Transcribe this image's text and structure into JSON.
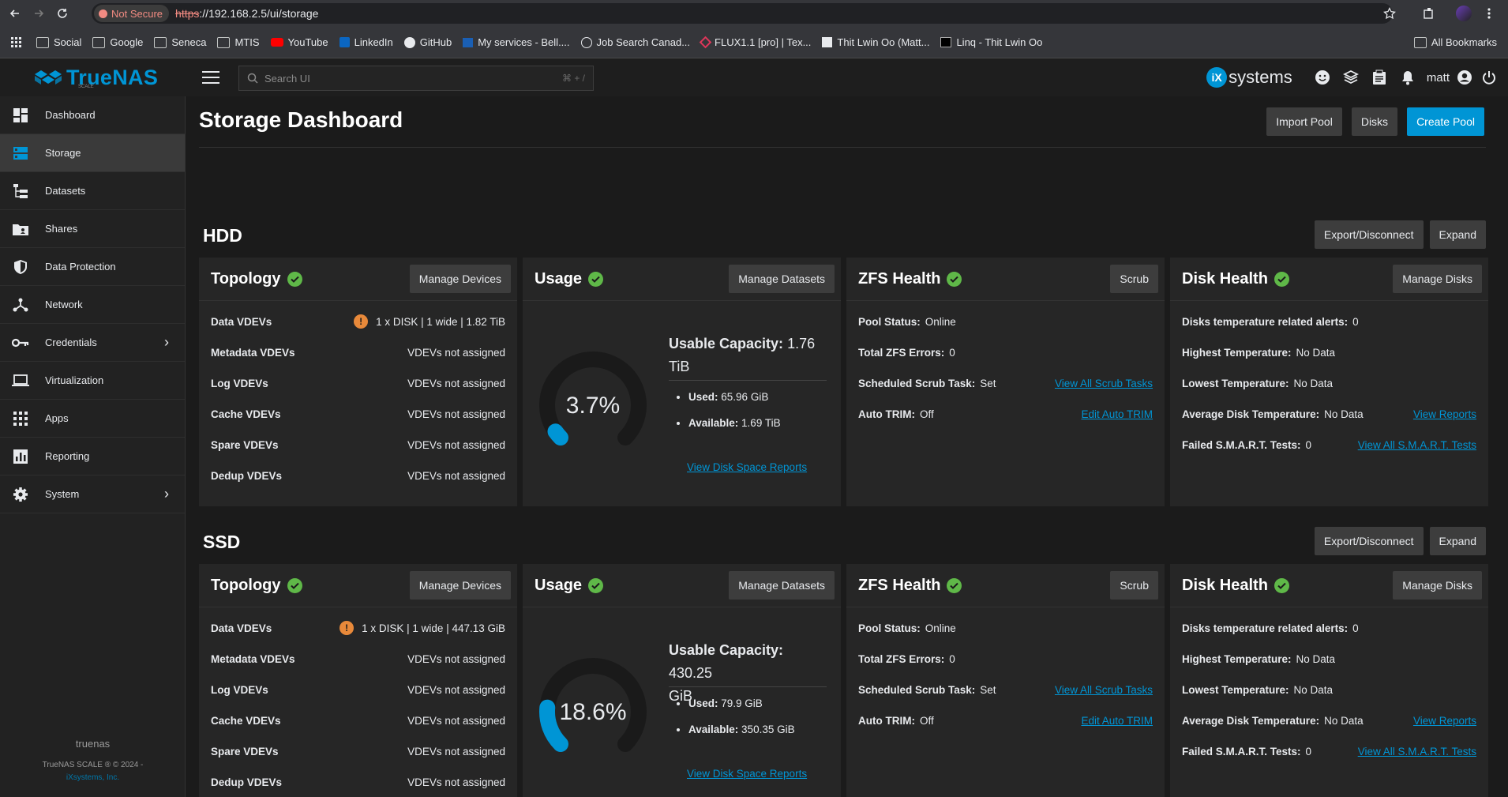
{
  "browser": {
    "security_label": "Not Secure",
    "url_scheme": "https",
    "url_rest": "://192.168.2.5/ui/storage",
    "bookmarks": [
      "Social",
      "Google",
      "Seneca",
      "MTIS",
      "YouTube",
      "LinkedIn",
      "GitHub",
      "My services - Bell....",
      "Job Search Canad...",
      "FLUX1.1 [pro] | Tex...",
      "Thit Lwin Oo (Matt...",
      "Linq - Thit Lwin Oo"
    ],
    "all_bookmarks": "All Bookmarks"
  },
  "header": {
    "logo": "TrueNAS",
    "logo_sub": "SCALE",
    "search_placeholder": "Search UI",
    "search_shortcut": "⌘ + /",
    "ix_brand": "systems",
    "user": "matt"
  },
  "sidebar": {
    "items": [
      {
        "label": "Dashboard",
        "icon": "dashboard-icon"
      },
      {
        "label": "Storage",
        "icon": "storage-icon"
      },
      {
        "label": "Datasets",
        "icon": "datasets-icon"
      },
      {
        "label": "Shares",
        "icon": "shares-icon"
      },
      {
        "label": "Data Protection",
        "icon": "shield-icon"
      },
      {
        "label": "Network",
        "icon": "network-icon"
      },
      {
        "label": "Credentials",
        "icon": "key-icon"
      },
      {
        "label": "Virtualization",
        "icon": "laptop-icon"
      },
      {
        "label": "Apps",
        "icon": "apps-grid-icon"
      },
      {
        "label": "Reporting",
        "icon": "chart-icon"
      },
      {
        "label": "System",
        "icon": "gear-icon"
      }
    ],
    "hostname": "truenas",
    "copyright": "TrueNAS SCALE ® © 2024 -",
    "company": "iXsystems, Inc."
  },
  "page": {
    "title": "Storage Dashboard",
    "import_pool": "Import Pool",
    "disks": "Disks",
    "create_pool": "Create Pool"
  },
  "labels": {
    "export": "Export/Disconnect",
    "expand": "Expand",
    "topology": "Topology",
    "manage_devices": "Manage Devices",
    "usage": "Usage",
    "manage_datasets": "Manage Datasets",
    "zfs_health": "ZFS Health",
    "scrub": "Scrub",
    "disk_health": "Disk Health",
    "manage_disks": "Manage Disks",
    "data_vdevs": "Data VDEVs",
    "metadata_vdevs": "Metadata VDEVs",
    "log_vdevs": "Log VDEVs",
    "cache_vdevs": "Cache VDEVs",
    "spare_vdevs": "Spare VDEVs",
    "dedup_vdevs": "Dedup VDEVs",
    "not_assigned": "VDEVs not assigned",
    "usable_capacity": "Usable Capacity:",
    "used": "Used:",
    "available": "Available:",
    "view_disk_space_reports": "View Disk Space Reports",
    "pool_status": "Pool Status:",
    "total_zfs_errors": "Total ZFS Errors:",
    "scheduled_scrub": "Scheduled Scrub Task:",
    "view_all_scrub": "View All Scrub Tasks",
    "auto_trim": "Auto TRIM:",
    "edit_auto_trim": "Edit Auto TRIM",
    "temp_alerts": "Disks temperature related alerts:",
    "highest_temp": "Highest Temperature:",
    "lowest_temp": "Lowest Temperature:",
    "avg_temp": "Average Disk Temperature:",
    "view_reports": "View Reports",
    "failed_smart": "Failed S.M.A.R.T. Tests:",
    "view_all_smart": "View All S.M.A.R.T. Tests"
  },
  "pools": [
    {
      "name": "HDD",
      "data_vdevs": "1 x DISK | 1 wide | 1.82 TiB",
      "usage_pct_label": "3.7%",
      "usage_fraction": 0.037,
      "usable_capacity_line1": "1.76",
      "usable_capacity_line2": "TiB",
      "used": "65.96 GiB",
      "available": "1.69 TiB",
      "pool_status": "Online",
      "total_zfs_errors": "0",
      "scheduled_scrub": "Set",
      "auto_trim": "Off",
      "temp_alerts": "0",
      "highest_temp": "No Data",
      "lowest_temp": "No Data",
      "avg_temp": "No Data",
      "failed_smart": "0"
    },
    {
      "name": "SSD",
      "data_vdevs": "1 x DISK | 1 wide | 447.13 GiB",
      "usage_pct_label": "18.6%",
      "usage_fraction": 0.186,
      "usable_capacity_line1": "430.25",
      "usable_capacity_line2": "GiB",
      "used": "79.9 GiB",
      "available": "350.35 GiB",
      "pool_status": "Online",
      "total_zfs_errors": "0",
      "scheduled_scrub": "Set",
      "auto_trim": "Off",
      "temp_alerts": "0",
      "highest_temp": "No Data",
      "lowest_temp": "No Data",
      "avg_temp": "No Data",
      "failed_smart": "0"
    }
  ],
  "colors": {
    "accent": "#0095d5",
    "ok": "#5fb848",
    "warn": "#e8893a"
  }
}
